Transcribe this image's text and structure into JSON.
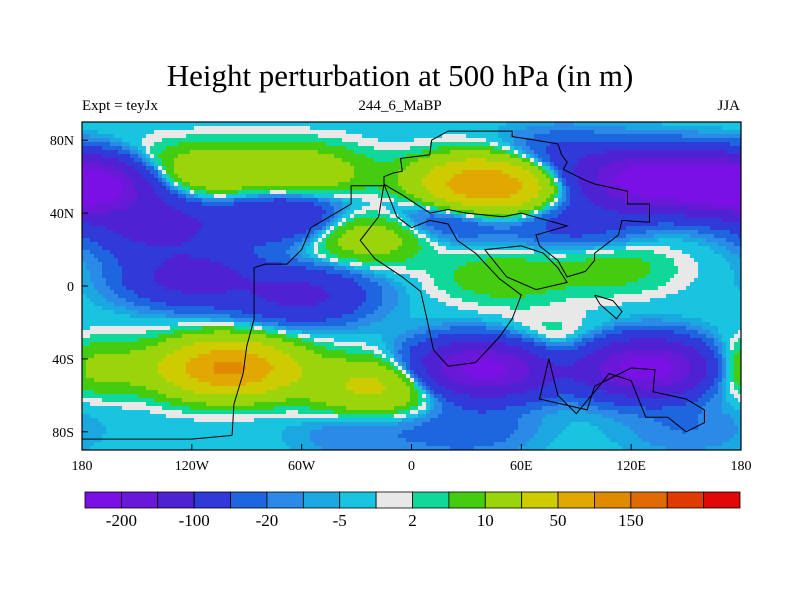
{
  "title": "Height perturbation at 500 hPa (in m)",
  "subtitle_left": "Expt = teyJx",
  "subtitle_center": "244_6_MaBP",
  "subtitle_right": "JJA",
  "chart_data": {
    "type": "heatmap",
    "projection": "cylindrical-equidistant",
    "lon_range": [
      -180,
      180
    ],
    "lat_range": [
      -90,
      90
    ],
    "x_ticks": [
      {
        "value": -180,
        "label": "180"
      },
      {
        "value": -120,
        "label": "120W"
      },
      {
        "value": -60,
        "label": "60W"
      },
      {
        "value": 0,
        "label": "0"
      },
      {
        "value": 60,
        "label": "60E"
      },
      {
        "value": 120,
        "label": "120E"
      },
      {
        "value": 180,
        "label": "180"
      }
    ],
    "y_ticks": [
      {
        "value": 80,
        "label": "80N"
      },
      {
        "value": 40,
        "label": "40N"
      },
      {
        "value": 0,
        "label": "0"
      },
      {
        "value": -40,
        "label": "40S"
      },
      {
        "value": -80,
        "label": "80S"
      }
    ],
    "colorbar": {
      "colors": [
        "#7a10e6",
        "#6a18d8",
        "#4e22d2",
        "#2f3ad8",
        "#1e66e0",
        "#2a8ae6",
        "#1ba8e0",
        "#18c4e0",
        "#e8e8e8",
        "#10d898",
        "#44cc10",
        "#9ad40a",
        "#cccc00",
        "#e0a800",
        "#e08a00",
        "#e06a00",
        "#e03a00",
        "#e00808"
      ],
      "levels": [
        -200,
        -150,
        -100,
        -50,
        -20,
        -10,
        -5,
        -2,
        2,
        5,
        10,
        20,
        50,
        100,
        150,
        200,
        250
      ],
      "labels": [
        {
          "after_box": 1,
          "text": "-200"
        },
        {
          "after_box": 3,
          "text": "-100"
        },
        {
          "after_box": 5,
          "text": "-20"
        },
        {
          "after_box": 7,
          "text": "-5"
        },
        {
          "after_box": 9,
          "text": "2"
        },
        {
          "after_box": 11,
          "text": "10"
        },
        {
          "after_box": 13,
          "text": "50"
        },
        {
          "after_box": 15,
          "text": "150"
        }
      ]
    },
    "field_anomalies": [
      {
        "lon": -180,
        "lat": 55,
        "value": -120
      },
      {
        "lon": -150,
        "lat": 62,
        "value": 20
      },
      {
        "lon": -110,
        "lat": 62,
        "value": 35
      },
      {
        "lon": -60,
        "lat": 62,
        "value": 40
      },
      {
        "lon": 40,
        "lat": 55,
        "value": 160
      },
      {
        "lon": 80,
        "lat": 70,
        "value": -30
      },
      {
        "lon": 130,
        "lat": 58,
        "value": -190
      },
      {
        "lon": 180,
        "lat": 55,
        "value": -120
      },
      {
        "lon": -140,
        "lat": 33,
        "value": -70
      },
      {
        "lon": -70,
        "lat": 38,
        "value": -55
      },
      {
        "lon": 20,
        "lat": 40,
        "value": -40
      },
      {
        "lon": 90,
        "lat": 35,
        "value": -30
      },
      {
        "lon": -25,
        "lat": 28,
        "value": 40
      },
      {
        "lon": -120,
        "lat": 5,
        "value": -70
      },
      {
        "lon": -60,
        "lat": -5,
        "value": -60
      },
      {
        "lon": 50,
        "lat": 5,
        "value": 18
      },
      {
        "lon": 110,
        "lat": 10,
        "value": 15
      },
      {
        "lon": -100,
        "lat": -45,
        "value": 160
      },
      {
        "lon": -20,
        "lat": -55,
        "value": 60
      },
      {
        "lon": 40,
        "lat": -45,
        "value": -180
      },
      {
        "lon": 70,
        "lat": -35,
        "value": 25
      },
      {
        "lon": 130,
        "lat": -45,
        "value": -190
      },
      {
        "lon": 175,
        "lat": -45,
        "value": 40
      },
      {
        "lon": -30,
        "lat": -80,
        "value": -10
      },
      {
        "lon": 30,
        "lat": -78,
        "value": -18
      },
      {
        "lon": 150,
        "lat": -78,
        "value": -10
      }
    ],
    "coastlines": [
      [
        [
          -98,
          -82
        ],
        [
          -97,
          -65
        ],
        [
          -92,
          -48
        ],
        [
          -90,
          -33
        ],
        [
          -86,
          -18
        ],
        [
          -86,
          -5
        ],
        [
          -86,
          10
        ],
        [
          -80,
          12
        ],
        [
          -68,
          12
        ],
        [
          -60,
          20
        ],
        [
          -55,
          32
        ],
        [
          -33,
          45
        ],
        [
          -33,
          55
        ],
        [
          -15,
          55
        ],
        [
          -15,
          60
        ],
        [
          -10,
          62
        ],
        [
          -5,
          63
        ],
        [
          -6,
          70
        ],
        [
          10,
          72
        ],
        [
          11,
          80
        ],
        [
          20,
          85
        ],
        [
          55,
          85
        ],
        [
          55,
          82
        ],
        [
          68,
          80
        ],
        [
          80,
          78
        ],
        [
          82,
          72
        ],
        [
          85,
          68
        ],
        [
          83,
          64
        ],
        [
          95,
          58
        ],
        [
          100,
          56
        ],
        [
          118,
          52
        ],
        [
          118,
          45
        ],
        [
          130,
          45
        ],
        [
          130,
          35
        ],
        [
          115,
          36
        ],
        [
          113,
          28
        ],
        [
          100,
          18
        ],
        [
          100,
          14
        ],
        [
          95,
          8
        ],
        [
          85,
          5
        ],
        [
          80,
          14
        ],
        [
          70,
          22
        ],
        [
          68,
          28
        ],
        [
          75,
          30
        ],
        [
          85,
          33
        ],
        [
          60,
          40
        ],
        [
          50,
          38
        ],
        [
          30,
          40
        ],
        [
          20,
          42
        ],
        [
          10,
          40
        ],
        [
          -5,
          50
        ],
        [
          -12,
          54
        ],
        [
          -15,
          56
        ]
      ],
      [
        [
          -15,
          56
        ],
        [
          -8,
          38
        ],
        [
          0,
          32
        ],
        [
          10,
          36
        ],
        [
          20,
          34
        ],
        [
          25,
          25
        ],
        [
          35,
          18
        ],
        [
          48,
          4
        ],
        [
          60,
          -5
        ],
        [
          55,
          -18
        ],
        [
          48,
          -28
        ],
        [
          35,
          -42
        ],
        [
          20,
          -44
        ],
        [
          12,
          -35
        ],
        [
          8,
          -16
        ],
        [
          5,
          -3
        ],
        [
          -5,
          5
        ],
        [
          -20,
          15
        ],
        [
          -28,
          25
        ],
        [
          -18,
          38
        ],
        [
          -15,
          56
        ]
      ],
      [
        [
          75,
          -40
        ],
        [
          70,
          -62
        ],
        [
          96,
          -68
        ],
        [
          100,
          -55
        ],
        [
          120,
          -45
        ],
        [
          133,
          -46
        ],
        [
          132,
          -58
        ],
        [
          150,
          -62
        ],
        [
          160,
          -68
        ],
        [
          160,
          -75
        ],
        [
          150,
          -80
        ],
        [
          140,
          -72
        ],
        [
          128,
          -72
        ],
        [
          120,
          -52
        ],
        [
          108,
          -48
        ],
        [
          100,
          -58
        ],
        [
          90,
          -70
        ],
        [
          80,
          -60
        ],
        [
          75,
          -40
        ]
      ],
      [
        [
          -98,
          -82
        ],
        [
          -120,
          -84
        ],
        [
          -180,
          -84
        ]
      ],
      [
        [
          40,
          20
        ],
        [
          60,
          22
        ],
        [
          72,
          18
        ],
        [
          80,
          10
        ],
        [
          85,
          2
        ],
        [
          68,
          -2
        ],
        [
          52,
          5
        ],
        [
          40,
          20
        ]
      ],
      [
        [
          100,
          -5
        ],
        [
          110,
          -8
        ],
        [
          115,
          -14
        ],
        [
          112,
          -18
        ],
        [
          103,
          -10
        ],
        [
          100,
          -5
        ]
      ]
    ]
  }
}
